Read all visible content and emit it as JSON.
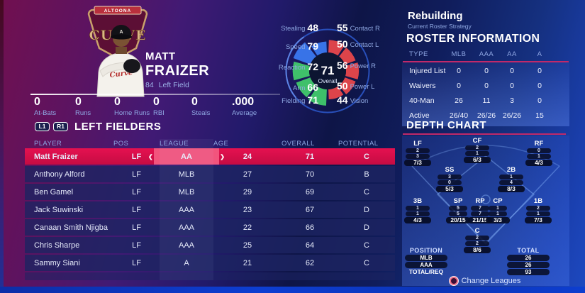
{
  "player_card": {
    "logo": {
      "banner_text": "ALTOONA",
      "name_text": "CURVE",
      "cap_letter": "A",
      "jersey_script": "Curve"
    },
    "first_name": "MATT",
    "last_name": "FRAIZER",
    "jersey_number": "84",
    "position": "Left Field",
    "season_stats": [
      {
        "value": "0",
        "label": "At-Bats"
      },
      {
        "value": "0",
        "label": "Runs"
      },
      {
        "value": "0",
        "label": "Home Runs"
      },
      {
        "value": "0",
        "label": "RBI"
      },
      {
        "value": "0",
        "label": "Steals"
      },
      {
        "value": ".000",
        "label": "Average"
      }
    ]
  },
  "chart_data": {
    "type": "pie",
    "title": "Player attribute wheel",
    "center": {
      "value": "71",
      "label": "Overall"
    },
    "max": 99,
    "segments": [
      {
        "label": "Contact R",
        "value": 55,
        "color": "#e8474b"
      },
      {
        "label": "Contact L",
        "value": 50,
        "color": "#e8474b"
      },
      {
        "label": "Power R",
        "value": 56,
        "color": "#e8474b"
      },
      {
        "label": "Power L",
        "value": 50,
        "color": "#e8474b"
      },
      {
        "label": "Vision",
        "value": 44,
        "color": "#e8474b"
      },
      {
        "label": "Fielding",
        "value": 71,
        "color": "#41c96b"
      },
      {
        "label": "Arm",
        "value": 66,
        "color": "#41c96b"
      },
      {
        "label": "Reaction",
        "value": 72,
        "color": "#41c96b"
      },
      {
        "label": "Speed",
        "value": 79,
        "color": "#3a78ef"
      },
      {
        "label": "Stealing",
        "value": 48,
        "color": "#3a78ef"
      }
    ]
  },
  "roster_panel": {
    "strategy": "Rebuilding",
    "strategy_sub": "Current Roster Strategy",
    "title": "ROSTER INFORMATION",
    "accent_color": "#c12969",
    "columns": [
      "TYPE",
      "MLB",
      "AAA",
      "AA",
      "A"
    ],
    "rows": [
      {
        "type": "Injured List",
        "values": [
          "0",
          "0",
          "0",
          "0"
        ]
      },
      {
        "type": "Waivers",
        "values": [
          "0",
          "0",
          "0",
          "0"
        ]
      },
      {
        "type": "40-Man",
        "values": [
          "26",
          "11",
          "3",
          "0"
        ]
      },
      {
        "type": "Active",
        "values": [
          "26/40",
          "26/26",
          "26/26",
          "15"
        ]
      }
    ]
  },
  "fielders_table": {
    "l1_label": "L1",
    "r1_label": "R1",
    "title": "LEFT FIELDERS",
    "selected_row_color": "#d8104a",
    "columns": [
      "PLAYER",
      "POS",
      "LEAGUE",
      "AGE",
      "OVERALL",
      "POTENTIAL"
    ],
    "stepper": {
      "left": "❮",
      "right": "❯"
    },
    "rows": [
      {
        "player": "Matt Fraizer",
        "pos": "LF",
        "league": "AA",
        "age": "24",
        "overall": "71",
        "potential": "C",
        "selected": true
      },
      {
        "player": "Anthony Alford",
        "pos": "LF",
        "league": "MLB",
        "age": "27",
        "overall": "70",
        "potential": "B"
      },
      {
        "player": "Ben Gamel",
        "pos": "LF",
        "league": "MLB",
        "age": "29",
        "overall": "69",
        "potential": "C"
      },
      {
        "player": "Jack Suwinski",
        "pos": "LF",
        "league": "AAA",
        "age": "23",
        "overall": "67",
        "potential": "D"
      },
      {
        "player": "Canaan Smith Njigba",
        "pos": "LF",
        "league": "AAA",
        "age": "22",
        "overall": "66",
        "potential": "D"
      },
      {
        "player": "Chris Sharpe",
        "pos": "LF",
        "league": "AAA",
        "age": "25",
        "overall": "64",
        "potential": "C"
      },
      {
        "player": "Sammy Siani",
        "pos": "LF",
        "league": "A",
        "age": "21",
        "overall": "62",
        "potential": "C"
      }
    ]
  },
  "depth_chart": {
    "title": "DEPTH CHART",
    "positions": [
      {
        "pos": "LF",
        "counts": [
          "2",
          "3"
        ],
        "ratio": "7/3"
      },
      {
        "pos": "CF",
        "counts": [
          "2",
          "1"
        ],
        "ratio": "6/3"
      },
      {
        "pos": "RF",
        "counts": [
          "0",
          "1"
        ],
        "ratio": "4/3"
      },
      {
        "pos": "SS",
        "counts": [
          "3",
          "0"
        ],
        "ratio": "5/3"
      },
      {
        "pos": "2B",
        "counts": [
          "1",
          "4"
        ],
        "ratio": "8/3"
      },
      {
        "pos": "3B",
        "counts": [
          "1",
          "1"
        ],
        "ratio": "4/3"
      },
      {
        "pos": "SP",
        "counts": [
          "5",
          "5"
        ],
        "ratio": "20/15"
      },
      {
        "pos": "RP",
        "counts": [
          "7",
          "7"
        ],
        "ratio": "21/15"
      },
      {
        "pos": "CP",
        "counts": [
          "1",
          "1"
        ],
        "ratio": "3/3"
      },
      {
        "pos": "1B",
        "counts": [
          "2",
          "1"
        ],
        "ratio": "7/3"
      },
      {
        "pos": "C",
        "counts": [
          "2",
          "2"
        ],
        "ratio": "8/6"
      }
    ],
    "summary": {
      "position_label": "POSITION",
      "total_label": "TOTAL",
      "rows": [
        {
          "label": "MLB",
          "total": "26"
        },
        {
          "label": "AAA",
          "total": "26"
        },
        {
          "label": "TOTAL/REQ",
          "total": "93"
        }
      ]
    },
    "change_leagues_label": "Change Leagues"
  }
}
